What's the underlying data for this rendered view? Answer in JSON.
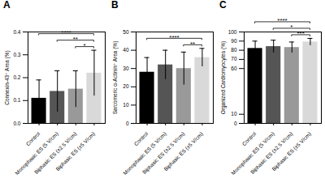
{
  "chart_data": [
    {
      "type": "bar",
      "title": "A",
      "categories": [
        "Control",
        "Monophasic ES (5 V/cm)",
        "Biphasic ES (±2.5 V/cm)",
        "Biphasic ES (±5 V/cm)"
      ],
      "values": [
        0.11,
        0.14,
        0.15,
        0.22
      ],
      "errors": [
        0.08,
        0.09,
        0.08,
        0.1
      ],
      "colors": [
        "#000000",
        "#555555",
        "#999999",
        "#d9d9d9"
      ],
      "y_label": "Connexin-43⁺ Area (%)",
      "ylim": [
        0,
        0.4
      ],
      "yticks": [
        {
          "value": 0,
          "label": "0.0"
        },
        0.1,
        0.2,
        0.3,
        0.4
      ],
      "significance": [
        {
          "groups": [
            "Biphasic ES (±2.5 V/cm)",
            "Biphasic ES (±5 V/cm)"
          ],
          "label": "*"
        },
        {
          "groups": [
            "Monophasic ES (5 V/cm)",
            "Biphasic ES (±5 V/cm)"
          ],
          "label": "**"
        },
        {
          "groups": [
            "Control",
            "Biphasic ES (±5 V/cm)"
          ],
          "label": "****"
        }
      ]
    },
    {
      "type": "bar",
      "title": "B",
      "categories": [
        "Control",
        "Monophasic ES (5 V/cm)",
        "Biphasic ES (±2.5 V/cm)",
        "Biphasic ES (±5 V/cm)"
      ],
      "values": [
        28,
        32,
        30,
        36
      ],
      "errors": [
        8,
        8,
        9,
        5
      ],
      "colors": [
        "#000000",
        "#555555",
        "#999999",
        "#d9d9d9"
      ],
      "y_label": "Sarcomeric α-Actinin⁺ Area (%)",
      "ylim": [
        0,
        50
      ],
      "yticks": [
        0,
        10,
        20,
        30,
        40,
        50
      ],
      "significance": [
        {
          "groups": [
            "Biphasic ES (±2.5 V/cm)",
            "Biphasic ES (±5 V/cm)"
          ],
          "label": "**"
        },
        {
          "groups": [
            "Control",
            "Biphasic ES (±5 V/cm)"
          ],
          "label": "****"
        }
      ]
    },
    {
      "type": "bar",
      "title": "C",
      "categories": [
        "Control",
        "Monophasic ES (5 V/cm)",
        "Biphasic ES (±2.5 V/cm)",
        "Biphasic ES (±5 V/cm)"
      ],
      "values": [
        82,
        84,
        83,
        89
      ],
      "errors": [
        8,
        7,
        6,
        4
      ],
      "colors": [
        "#000000",
        "#555555",
        "#999999",
        "#d9d9d9"
      ],
      "y_label": "Organized Cardiomyocytes (%)",
      "ylim": [
        0,
        100
      ],
      "yticks": [
        0,
        10,
        60,
        70,
        80,
        90,
        100
      ],
      "significance": [
        {
          "groups": [
            "Biphasic ES (±2.5 V/cm)",
            "Biphasic ES (±5 V/cm)"
          ],
          "label": "***"
        },
        {
          "groups": [
            "Monophasic ES (5 V/cm)",
            "Biphasic ES (±5 V/cm)"
          ],
          "label": "*"
        },
        {
          "groups": [
            "Control",
            "Biphasic ES (±5 V/cm)"
          ],
          "label": "****"
        }
      ]
    }
  ]
}
